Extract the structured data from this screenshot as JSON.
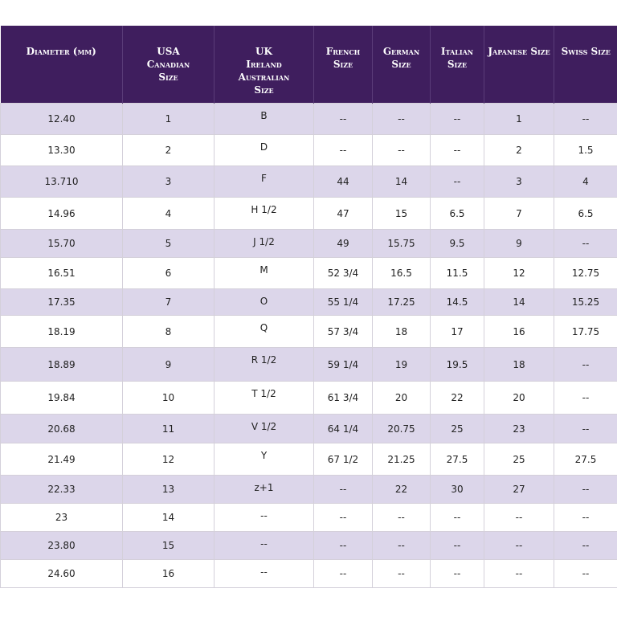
{
  "headers": [
    [
      "Diameter (mm)"
    ],
    [
      "USA",
      "Canadian",
      "Size"
    ],
    [
      "UK",
      "Ireland",
      "Australian",
      "Size"
    ],
    [
      "French",
      "Size"
    ],
    [
      "German",
      "Size"
    ],
    [
      "Italian",
      "Size"
    ],
    [
      "Japanese Size"
    ],
    [
      "Swiss Size"
    ]
  ],
  "rows": [
    [
      "12.40",
      "1",
      "B",
      "--",
      "--",
      "--",
      "1",
      "--"
    ],
    [
      "13.30",
      "2",
      "D",
      "--",
      "--",
      "--",
      "2",
      "1.5"
    ],
    [
      "13.710",
      "3",
      "F",
      "44",
      "14",
      "--",
      "3",
      "4"
    ],
    [
      "14.96",
      "4",
      "H 1/2",
      "47",
      "15",
      "6.5",
      "7",
      "6.5"
    ],
    [
      "15.70",
      "5",
      "J 1/2",
      "49",
      "15.75",
      "9.5",
      "9",
      "--"
    ],
    [
      "16.51",
      "6",
      "M",
      "52 3/4",
      "16.5",
      "11.5",
      "12",
      "12.75"
    ],
    [
      "17.35",
      "7",
      "O",
      "55 1/4",
      "17.25",
      "14.5",
      "14",
      "15.25"
    ],
    [
      "18.19",
      "8",
      "Q",
      "57 3/4",
      "18",
      "17",
      "16",
      "17.75"
    ],
    [
      "18.89",
      "9",
      "R 1/2",
      "59 1/4",
      "19",
      "19.5",
      "18",
      "--"
    ],
    [
      "19.84",
      "10",
      "T 1/2",
      "61 3/4",
      "20",
      "22",
      "20",
      "--"
    ],
    [
      "20.68",
      "11",
      "V 1/2",
      "64 1/4",
      "20.75",
      "25",
      "23",
      "--"
    ],
    [
      "21.49",
      "12",
      "Y",
      "67 1/2",
      "21.25",
      "27.5",
      "25",
      "27.5"
    ],
    [
      "22.33",
      "13",
      "z+1",
      "--",
      "22",
      "30",
      "27",
      "--"
    ],
    [
      "23",
      "14",
      "--",
      "--",
      "--",
      "--",
      "--",
      "--"
    ],
    [
      "23.80",
      "15",
      "--",
      "--",
      "--",
      "--",
      "--",
      "--"
    ],
    [
      "24.60",
      "16",
      "--",
      "--",
      "--",
      "--",
      "--",
      "--"
    ]
  ],
  "colors": {
    "header_bg": "#3f1e5e",
    "header_text": "#ffffff",
    "stripe": "#dcd6ea",
    "row_white": "#ffffff",
    "border": "#d4d0da"
  }
}
